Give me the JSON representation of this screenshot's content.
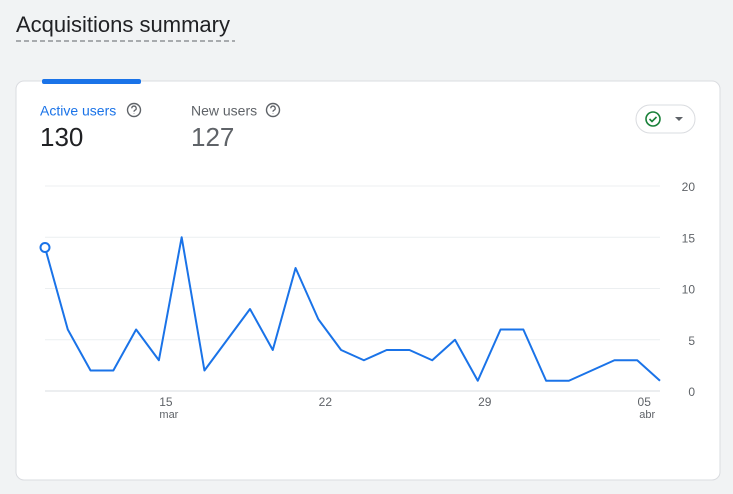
{
  "header": {
    "title": "Acquisitions summary"
  },
  "tabs": [
    {
      "label": "Active users",
      "value": 130
    },
    {
      "label": "New users",
      "value": 127
    }
  ],
  "chart_data": {
    "type": "line",
    "categories": [
      null,
      null,
      null,
      null,
      null,
      "15",
      null,
      null,
      null,
      null,
      null,
      null,
      "22",
      null,
      null,
      null,
      null,
      null,
      null,
      "29",
      null,
      null,
      null,
      null,
      null,
      null,
      "05",
      null
    ],
    "category_sublabels": [
      null,
      null,
      null,
      null,
      null,
      "mar",
      null,
      null,
      null,
      null,
      null,
      null,
      null,
      null,
      null,
      null,
      null,
      null,
      null,
      null,
      null,
      null,
      null,
      null,
      null,
      null,
      "abr",
      null
    ],
    "values": [
      14,
      6,
      2,
      2,
      6,
      3,
      15,
      2,
      5,
      8,
      4,
      12,
      7,
      4,
      3,
      4,
      4,
      3,
      5,
      1,
      6,
      6,
      1,
      1,
      2,
      3,
      3,
      1
    ],
    "color": "#1a73e8",
    "ylim": [
      0,
      20
    ],
    "yticks": [
      0,
      5,
      10,
      15,
      20
    ],
    "grid": true
  }
}
